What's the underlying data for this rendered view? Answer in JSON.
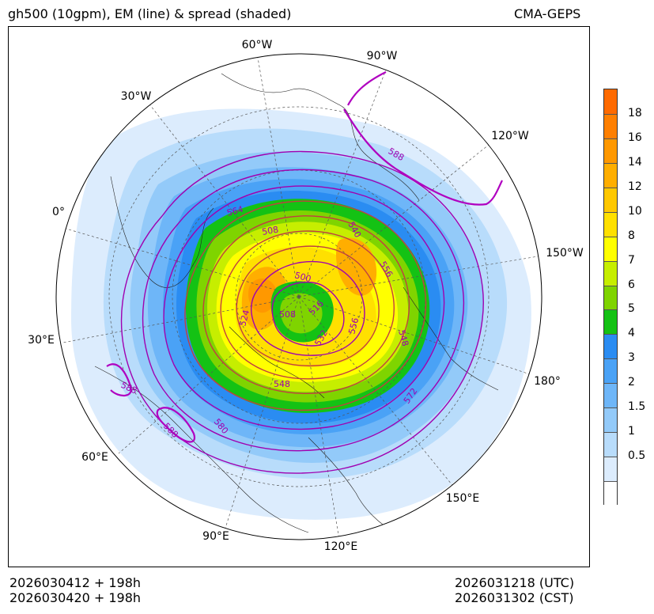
{
  "header": {
    "title": "gh500 (10gpm), EM (line) & spread (shaded)",
    "model": "CMA-GEPS"
  },
  "footer": {
    "init_utc": "2026030412 + 198h",
    "init_cst": "2026030420 + 198h",
    "valid_utc": "2026031218 (UTC)",
    "valid_cst": "2026031302 (CST)"
  },
  "map": {
    "projection": "north-polar-stereographic",
    "longitude_labels": [
      "60°W",
      "90°W",
      "30°W",
      "120°W",
      "0°",
      "150°W",
      "30°E",
      "180°",
      "60°E",
      "150°E",
      "90°E",
      "120°E"
    ],
    "contour_labels": [
      "588",
      "564",
      "540",
      "508",
      "556",
      "500",
      "524",
      "516",
      "508",
      "556",
      "548",
      "532",
      "548",
      "572",
      "588",
      "580",
      "588"
    ]
  },
  "colorbar": {
    "ticks": [
      "18",
      "16",
      "14",
      "12",
      "10",
      "8",
      "7",
      "6",
      "5",
      "4",
      "3",
      "2",
      "1.5",
      "1",
      "0.5"
    ],
    "colors": [
      "#ff6a00",
      "#ff7f00",
      "#ff9800",
      "#ffae00",
      "#ffc800",
      "#ffe000",
      "#ffff00",
      "#c6ee00",
      "#7fd400",
      "#14c214",
      "#2a8cf2",
      "#4aa2f6",
      "#6eb6f8",
      "#93caf9",
      "#b8dcfb",
      "#dcecfd",
      "#ffffff"
    ]
  }
}
